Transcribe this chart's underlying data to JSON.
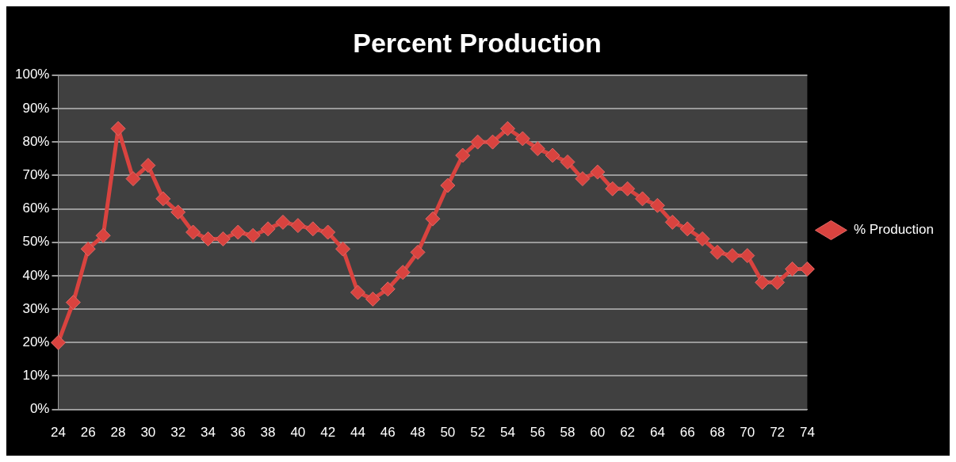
{
  "chart_data": {
    "type": "line",
    "title": "Percent Production",
    "categories": [
      "24",
      null,
      "26",
      null,
      "28",
      null,
      "30",
      null,
      "32",
      null,
      "34",
      null,
      "36",
      null,
      "38",
      null,
      "40",
      null,
      "42",
      null,
      "44",
      null,
      "46",
      null,
      "48",
      null,
      "50",
      null,
      "52",
      null,
      "54",
      null,
      "56",
      null,
      "58",
      null,
      "60",
      null,
      "62",
      null,
      "64",
      null,
      "66",
      null,
      "68",
      null,
      "70",
      null,
      "72",
      null,
      "74"
    ],
    "series": [
      {
        "name": "% Production",
        "color": "#d9433f",
        "values": [
          20,
          32,
          48,
          52,
          84,
          69,
          73,
          63,
          59,
          53,
          51,
          51,
          53,
          52,
          54,
          56,
          55,
          54,
          53,
          48,
          35,
          33,
          36,
          41,
          47,
          57,
          67,
          76,
          80,
          80,
          84,
          81,
          78,
          76,
          74,
          69,
          71,
          66,
          66,
          63,
          61,
          56,
          54,
          51,
          47,
          46,
          46,
          38,
          38,
          42,
          42
        ]
      }
    ],
    "ylim": [
      0,
      100
    ],
    "yticks": [
      {
        "value": 0,
        "label": "0%"
      },
      {
        "value": 10,
        "label": "10%"
      },
      {
        "value": 20,
        "label": "20%"
      },
      {
        "value": 30,
        "label": "30%"
      },
      {
        "value": 40,
        "label": "40%"
      },
      {
        "value": 50,
        "label": "50%"
      },
      {
        "value": 60,
        "label": "60%"
      },
      {
        "value": 70,
        "label": "70%"
      },
      {
        "value": 80,
        "label": "80%"
      },
      {
        "value": 90,
        "label": "90%"
      },
      {
        "value": 100,
        "label": "100%"
      }
    ],
    "grid": "y",
    "legend": "right",
    "marker": "diamond",
    "line_style": "solid"
  }
}
